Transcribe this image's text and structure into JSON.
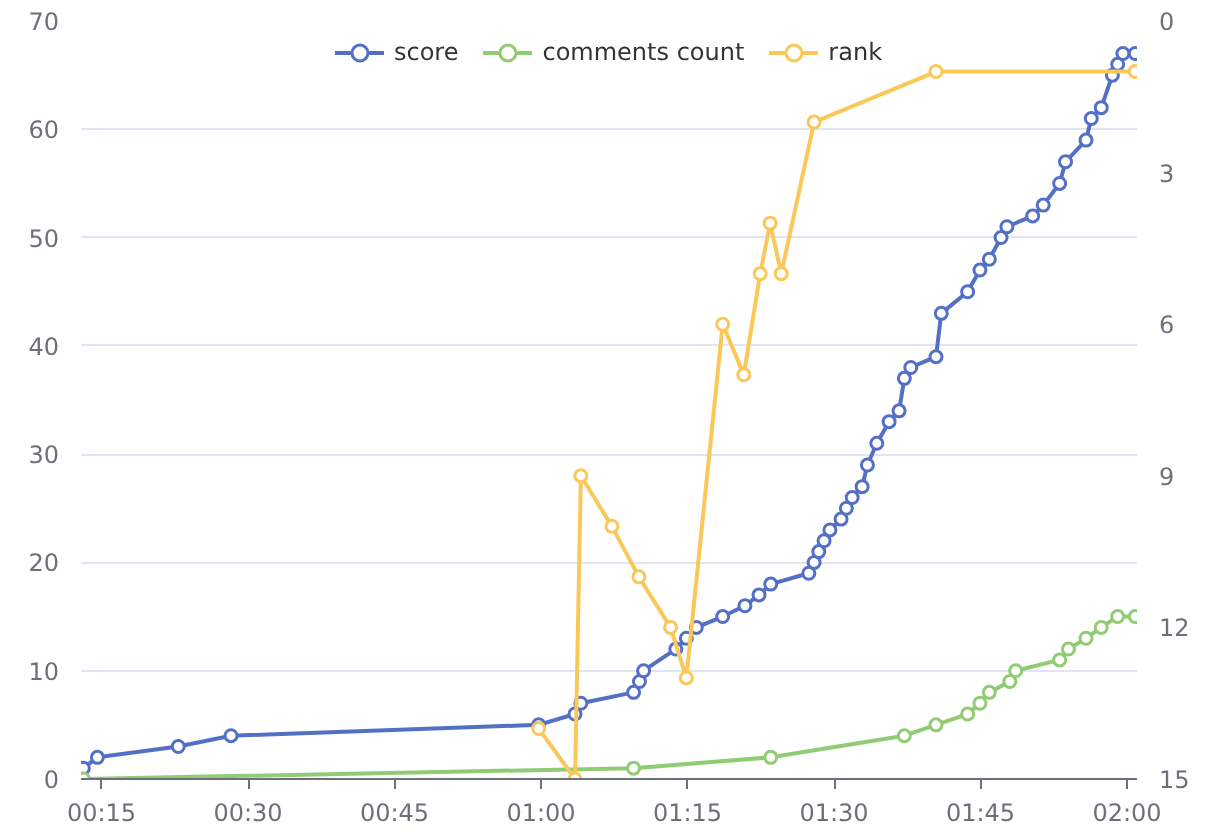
{
  "chart_data": {
    "type": "line",
    "marker": "circle",
    "grid": "y",
    "legend": "top",
    "xlim": [
      0.215,
      2.017
    ],
    "xticks": [
      {
        "value": 0.25,
        "label": "00:15"
      },
      {
        "value": 0.5,
        "label": "00:30"
      },
      {
        "value": 0.75,
        "label": "00:45"
      },
      {
        "value": 1.0,
        "label": "01:00"
      },
      {
        "value": 1.25,
        "label": "01:15"
      },
      {
        "value": 1.5,
        "label": "01:30"
      },
      {
        "value": 1.75,
        "label": "01:45"
      },
      {
        "value": 2.0,
        "label": "02:00"
      }
    ],
    "ylim": [
      0,
      70
    ],
    "yticks": [
      0,
      10,
      20,
      30,
      40,
      50,
      60,
      70
    ],
    "y2lim": [
      15,
      0
    ],
    "y2ticks": [
      0,
      3,
      6,
      9,
      12,
      15
    ],
    "series": [
      {
        "name": "score",
        "color": "#5470c6",
        "x": [
          0.219,
          0.243,
          0.381,
          0.471,
          0.996,
          1.058,
          1.068,
          1.158,
          1.168,
          1.175,
          1.23,
          1.248,
          1.265,
          1.31,
          1.348,
          1.372,
          1.392,
          1.457,
          1.466,
          1.474,
          1.483,
          1.493,
          1.512,
          1.521,
          1.531,
          1.548,
          1.557,
          1.573,
          1.594,
          1.611,
          1.62,
          1.631,
          1.674,
          1.683,
          1.728,
          1.749,
          1.765,
          1.785,
          1.795,
          1.839,
          1.857,
          1.885,
          1.895,
          1.93,
          1.939,
          1.956,
          1.975,
          1.984,
          1.993,
          2.014
        ],
        "values": [
          1,
          2,
          3,
          4,
          5,
          6,
          7,
          8,
          9,
          10,
          12,
          13,
          14,
          15,
          16,
          17,
          18,
          19,
          20,
          21,
          22,
          23,
          24,
          25,
          26,
          27,
          29,
          31,
          33,
          34,
          37,
          38,
          39,
          43,
          45,
          47,
          48,
          50,
          51,
          52,
          53,
          55,
          57,
          59,
          61,
          62,
          65,
          66,
          67,
          67
        ]
      },
      {
        "name": "comments count",
        "color": "#91cc75",
        "x": [
          0.219,
          1.158,
          1.392,
          1.62,
          1.674,
          1.728,
          1.749,
          1.765,
          1.8,
          1.81,
          1.885,
          1.9,
          1.93,
          1.956,
          1.984,
          2.014
        ],
        "values": [
          0,
          1,
          2,
          4,
          5,
          6,
          7,
          8,
          9,
          10,
          11,
          12,
          13,
          14,
          15,
          15
        ]
      },
      {
        "name": "rank",
        "color": "#fac858",
        "axis": "y2",
        "x": [
          0.996,
          1.058,
          1.068,
          1.121,
          1.167,
          1.221,
          1.248,
          1.31,
          1.346,
          1.374,
          1.391,
          1.41,
          1.466,
          1.674,
          2.014
        ],
        "values": [
          14,
          15,
          9,
          10,
          11,
          12,
          13,
          6,
          7,
          5,
          4,
          5,
          2,
          1,
          1
        ]
      }
    ]
  }
}
